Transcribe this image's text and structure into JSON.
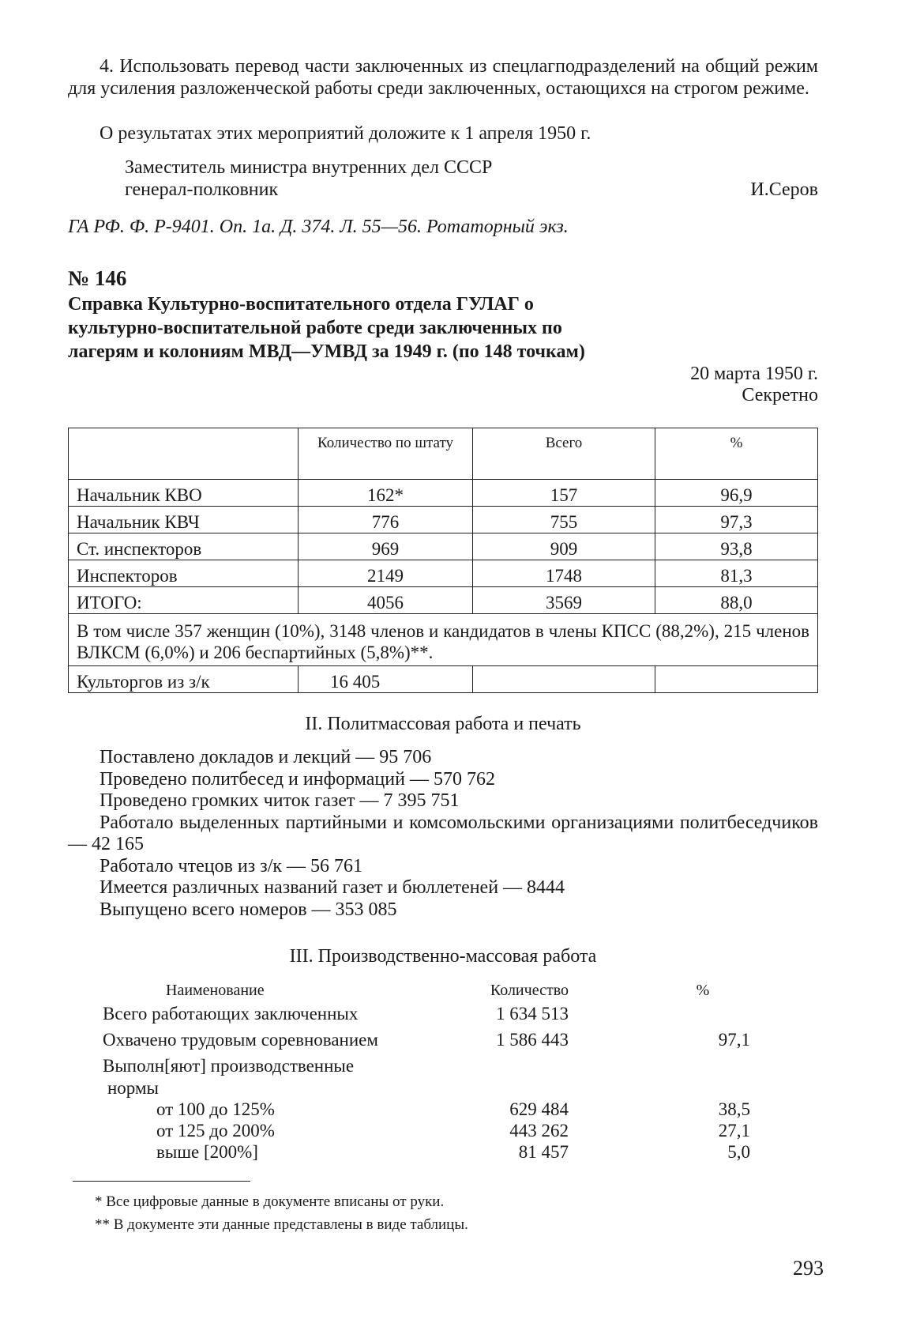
{
  "intro": {
    "item4": "4. Использовать перевод части заключенных из спецлагподразделений на общий режим для усиления разложенческой работы среди заключенных, остающихся на строгом режиме.",
    "report": "О результатах этих мероприятий доложите к 1 апреля 1950 г.",
    "signer_title_1": "Заместитель министра внутренних дел СССР",
    "signer_title_2": "генерал-полковник",
    "signer_name": "И.Серов",
    "archive_ref": "ГА РФ. Ф. Р-9401. Оп. 1а. Д. 374. Л. 55—56. Ротаторный экз."
  },
  "document": {
    "number": "№ 146",
    "title": "Справка Культурно-воспитательного отдела ГУЛАГ о культурно-воспитательной работе среди заключенных по лагерям и колониям МВД—УМВД за 1949 г. (по 148 точкам)",
    "date": "20 марта 1950 г.",
    "classification": "Секретно"
  },
  "staff_table": {
    "headers": [
      "",
      "Количество по штату",
      "Всего",
      "%"
    ],
    "rows": [
      [
        "Начальник КВО",
        "162*",
        "157",
        "96,9"
      ],
      [
        "Начальник КВЧ",
        "776",
        "755",
        "97,3"
      ],
      [
        "Ст. инспекторов",
        "969",
        "909",
        "93,8"
      ],
      [
        "Инспекторов",
        "2149",
        "1748",
        "81,3"
      ],
      [
        "ИТОГО:",
        "4056",
        "3569",
        "88,0"
      ]
    ],
    "note": "В том числе 357 женщин (10%), 3148 членов и кандидатов в члены КПСС (88,2%), 215 членов ВЛКСМ (6,0%) и 206 беспартийных (5,8%)**.",
    "last_row": [
      "Культоргов из з/к",
      "16 405",
      "",
      ""
    ]
  },
  "section2": {
    "heading": "II. Политмассовая работа и печать",
    "lines": [
      "Поставлено докладов и лекций — 95 706",
      "Проведено политбесед и информаций — 570 762",
      "Проведено громких читок газет — 7 395 751",
      "Работало выделенных партийными и комсомольскими организациями политбеседчиков — 42 165",
      "Работало чтецов из з/к — 56 761",
      "Имеется различных названий газет и бюллетеней — 8444",
      "Выпущено всего номеров — 353 085"
    ]
  },
  "section3": {
    "heading": "III. Производственно-массовая работа",
    "headers": [
      "Наименование",
      "Количество",
      "%"
    ],
    "rows": [
      [
        "Всего работающих заключенных",
        "1 634 513",
        ""
      ],
      [
        "Охвачено трудовым соревнованием",
        "1 586 443",
        "97,1"
      ],
      [
        "Выполн[яют] производственные",
        "",
        ""
      ],
      [
        "нормы",
        "",
        ""
      ],
      [
        "от 100 до 125%",
        "629 484",
        "38,5"
      ],
      [
        "от 125 до 200%",
        "443 262",
        "27,1"
      ],
      [
        "выше [200%]",
        "81 457",
        "5,0"
      ]
    ]
  },
  "footnotes": [
    "* Все цифровые данные в документе вписаны от руки.",
    "** В документе эти данные представлены в виде таблицы."
  ],
  "page_number": "293"
}
